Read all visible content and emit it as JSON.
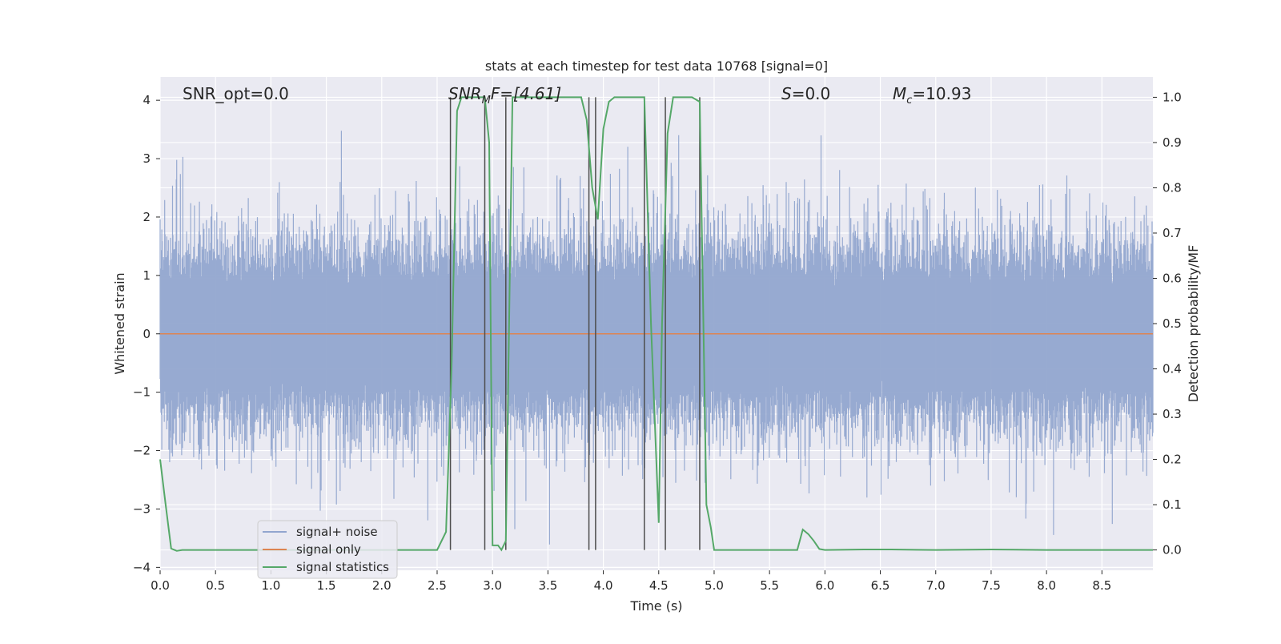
{
  "chart_data": {
    "type": "line",
    "title": "stats at each timestep for test data 10768 [signal=0]",
    "xlabel": "Time (s)",
    "ylabel_left": "Whitened strain",
    "ylabel_right": "Detection probability/MF",
    "xlim": [
      0.0,
      8.96
    ],
    "ylim_left": [
      -4.05,
      4.4
    ],
    "ylim_right": [
      -0.045,
      1.045
    ],
    "xticks": [
      "0.0",
      "0.5",
      "1.0",
      "1.5",
      "2.0",
      "2.5",
      "3.0",
      "3.5",
      "4.0",
      "4.5",
      "5.0",
      "5.5",
      "6.0",
      "6.5",
      "7.0",
      "7.5",
      "8.0",
      "8.5"
    ],
    "yticks_left": [
      "4",
      "3",
      "2",
      "1",
      "0",
      "−1",
      "−2",
      "−3",
      "−4"
    ],
    "yticks_right": [
      "1.0",
      "0.9",
      "0.8",
      "0.7",
      "0.6",
      "0.5",
      "0.4",
      "0.3",
      "0.2",
      "0.1",
      "0.0"
    ],
    "grid": true,
    "legend_placement": "lower-left",
    "annotations": {
      "snr_opt": "SNR_opt=0.0",
      "snr_mf_main": "SNR",
      "snr_mf_sub": "M",
      "snr_mf_rest": "F=[4.61]",
      "s_label": "S",
      "s_value": "=0.0",
      "mc_main": "M",
      "mc_sub": "c",
      "mc_value": "=10.93"
    },
    "series": [
      {
        "name": "signal+ noise",
        "color": "#92a6cf",
        "description": "whitened noise, approx gaussian, amplitude envelope +/-1.7 with peaks to ~3.5",
        "peak_min": -3.7,
        "peak_max": 3.5
      },
      {
        "name": "signal only",
        "color": "#dd8452",
        "x": [
          0.0,
          8.96
        ],
        "y": [
          0.0,
          0.0
        ]
      },
      {
        "name": "signal statistics",
        "color": "#55a868",
        "axis": "right",
        "x": [
          0.0,
          0.05,
          0.1,
          0.15,
          0.2,
          0.5,
          1.0,
          1.5,
          2.0,
          2.5,
          2.58,
          2.63,
          2.68,
          2.72,
          2.77,
          2.82,
          2.88,
          2.93,
          2.97,
          3.0,
          3.05,
          3.08,
          3.12,
          3.18,
          3.25,
          3.35,
          3.5,
          3.6,
          3.7,
          3.8,
          3.85,
          3.9,
          3.95,
          4.0,
          4.05,
          4.1,
          4.2,
          4.3,
          4.37,
          4.43,
          4.5,
          4.53,
          4.58,
          4.63,
          4.7,
          4.8,
          4.87,
          4.93,
          4.97,
          5.0,
          5.2,
          5.5,
          5.75,
          5.8,
          5.85,
          5.9,
          5.95,
          6.0,
          6.35,
          6.6,
          7.0,
          7.5,
          8.0,
          8.96
        ],
        "y": [
          0.2,
          0.1,
          0.003,
          -0.002,
          0.0,
          0.0,
          0.0,
          0.0,
          0.0,
          0.0,
          0.04,
          0.4,
          0.97,
          1.0,
          1.0,
          1.0,
          1.0,
          1.0,
          0.9,
          0.01,
          0.01,
          0.0,
          0.02,
          1.0,
          1.0,
          1.0,
          1.0,
          1.0,
          1.0,
          1.0,
          0.95,
          0.8,
          0.73,
          0.93,
          0.99,
          1.0,
          1.0,
          1.0,
          1.0,
          0.5,
          0.06,
          0.5,
          0.92,
          1.0,
          1.0,
          1.0,
          0.99,
          0.1,
          0.05,
          0.0,
          0.0,
          0.0,
          0.0,
          0.045,
          0.035,
          0.02,
          0.002,
          0.0,
          0.001,
          0.001,
          0.0,
          0.001,
          0.0,
          0.0
        ]
      }
    ],
    "vertical_lines_x": [
      2.62,
      2.93,
      3.12,
      3.87,
      3.93,
      4.37,
      4.56,
      4.87
    ]
  }
}
